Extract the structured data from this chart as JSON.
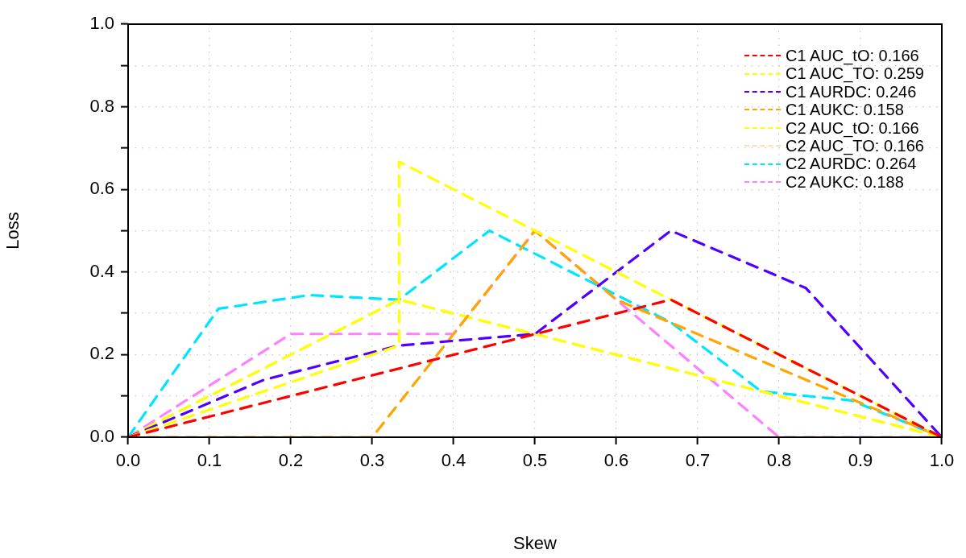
{
  "chart_data": {
    "type": "line",
    "xlabel": "Skew",
    "ylabel": "Loss",
    "xlim": [
      0,
      1
    ],
    "ylim": [
      0,
      1
    ],
    "xticks": [
      {
        "value": 0,
        "label": "0.0"
      },
      0.1,
      0.2,
      0.3,
      0.4,
      0.5,
      0.6,
      0.7,
      0.8,
      0.9,
      {
        "value": 1,
        "label": "1.0"
      }
    ],
    "yticks": [
      {
        "value": 0,
        "label": "0.0"
      },
      {
        "value": 0.1,
        "label": null
      },
      0.2,
      {
        "value": 0.3,
        "label": null
      },
      0.4,
      {
        "value": 0.5,
        "label": null
      },
      0.6,
      {
        "value": 0.7,
        "label": null
      },
      0.8,
      {
        "value": 0.9,
        "label": null
      },
      {
        "value": 1,
        "label": "1.0"
      }
    ],
    "grid": true,
    "legend": "top right",
    "line_style": "dashed",
    "marker": "none",
    "series": [
      {
        "name": "C1 AUC_tO: 0.166",
        "color": "#ff0000",
        "x": [
          0,
          0.667,
          1
        ],
        "values": [
          0,
          0.333,
          0
        ]
      },
      {
        "name": "C1 AUC_TO: 0.259",
        "color": "#ffff00",
        "x": [
          0,
          0.333,
          0.333,
          1
        ],
        "values": [
          0,
          0.222,
          0.667,
          0
        ]
      },
      {
        "name": "C1 AURDC: 0.246",
        "color": "#5000ff",
        "x": [
          0,
          0.167,
          0.333,
          0.5,
          0.667,
          0.833,
          1
        ],
        "values": [
          0,
          0.139,
          0.222,
          0.25,
          0.5,
          0.361,
          0
        ]
      },
      {
        "name": "C1 AUKC: 0.158",
        "color": "#ffa500",
        "x": [
          0,
          0.3,
          0.5,
          0.6,
          1
        ],
        "values": [
          0,
          0,
          0.5,
          0.333,
          0
        ]
      },
      {
        "name": "C2 AUC_tO: 0.166",
        "color": "#ffff00",
        "x": [
          0,
          0.333,
          1
        ],
        "values": [
          0,
          0.333,
          0
        ]
      },
      {
        "name": "C2 AUC_TO: 0.166",
        "color": "#ffdead",
        "x": [
          0,
          0.333,
          1
        ],
        "values": [
          0,
          0.333,
          0
        ]
      },
      {
        "name": "C2 AURDC: 0.264",
        "color": "#00e5ff",
        "x": [
          0,
          0.111,
          0.222,
          0.333,
          0.444,
          0.667,
          0.778,
          0.889,
          1
        ],
        "values": [
          0,
          0.311,
          0.344,
          0.333,
          0.5,
          0.278,
          0.111,
          0.089,
          0
        ]
      },
      {
        "name": "C2 AUKC: 0.188",
        "color": "#ff80ff",
        "x": [
          0,
          0.2,
          0.4,
          0.5,
          0.6,
          0.8,
          1
        ],
        "values": [
          0,
          0.25,
          0.25,
          0.5,
          0.333,
          0,
          0
        ]
      }
    ]
  }
}
